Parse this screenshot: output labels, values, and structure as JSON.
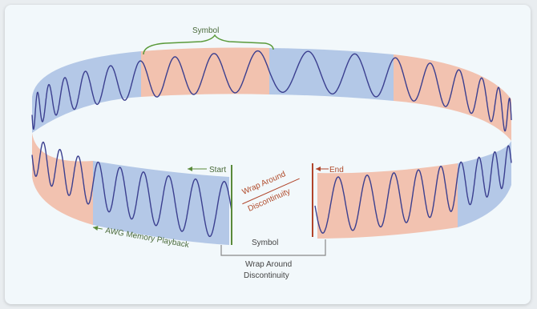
{
  "diagram": {
    "labels": {
      "symbol_top": "Symbol",
      "start": "Start",
      "end": "End",
      "wrap_around_line1": "Wrap Around",
      "wrap_around_line2": "Discontinuity",
      "awg_playback": "AWG Memory Playback",
      "bottom_line1": "Symbol",
      "bottom_line2": "Wrap Around",
      "bottom_line3": "Discontinuity"
    },
    "colors": {
      "blue_band": "#a9c0e3",
      "orange_band": "#f2b9a2",
      "wave": "#3b3f8f",
      "start_marker": "#5a8a3a",
      "end_marker": "#b0442a",
      "symbol_bracket": "#5a9a3a"
    }
  }
}
